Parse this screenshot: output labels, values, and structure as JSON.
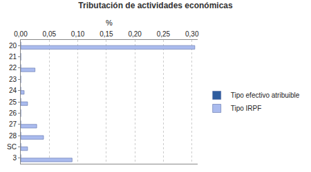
{
  "chart_data": {
    "type": "bar",
    "orientation": "horizontal",
    "title": "Tributación de actividades económicas",
    "x_label": "%",
    "categories": [
      "20",
      "21",
      "22",
      "23",
      "24",
      "25",
      "26",
      "27",
      "28",
      "SC",
      "3"
    ],
    "series": [
      {
        "name": "Tipo efectivo atribuible",
        "color": "#2e5c9e",
        "values": [
          0,
          0,
          0,
          0,
          0,
          0,
          0,
          0,
          0,
          0,
          0
        ]
      },
      {
        "name": "Tipo IRPF",
        "color": "#aabbee",
        "values": [
          0.305,
          0,
          0.025,
          0,
          0.006,
          0.012,
          0,
          0.028,
          0.04,
          0.012,
          0.09
        ]
      }
    ],
    "xlim": [
      0,
      0.31
    ],
    "xticks": [
      {
        "value": 0,
        "label": "0,00"
      },
      {
        "value": 0.05,
        "label": "0,05"
      },
      {
        "value": 0.1,
        "label": "0,10"
      },
      {
        "value": 0.15,
        "label": "0,15"
      },
      {
        "value": 0.2,
        "label": "0,20"
      },
      {
        "value": 0.25,
        "label": "0,25"
      },
      {
        "value": 0.3,
        "label": "0,30"
      }
    ],
    "grid": true,
    "legend": "right"
  }
}
